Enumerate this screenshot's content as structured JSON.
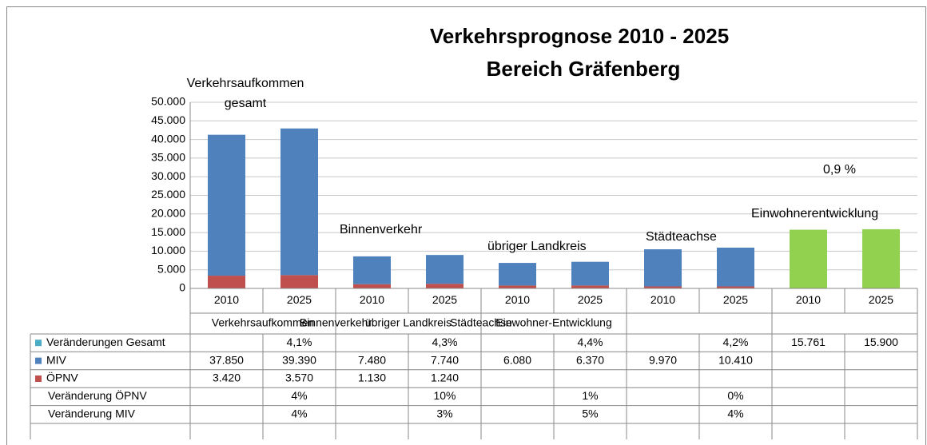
{
  "chart_data": {
    "type": "bar",
    "stacked": true,
    "title": "Verkehrsprognose 2010 - 2025",
    "subtitle": "Bereich Gräfenberg",
    "categories": [
      "2010",
      "2025",
      "2010",
      "2025",
      "2010",
      "2025",
      "2010",
      "2025",
      "2010",
      "2025"
    ],
    "category_groups": [
      "Verkehrsaufkommen",
      "Binnenverkehr",
      "übriger Landkreis",
      "Städteachse",
      "Einwohner-Entwicklung"
    ],
    "series": [
      {
        "name": "ÖPNV",
        "color": "#c0504d",
        "values": [
          3420,
          3570,
          1130,
          1240,
          770,
          780,
          540,
          540,
          null,
          null
        ],
        "value_labels": [
          "3.420",
          "3.570",
          "1.130",
          "1.240",
          null,
          null,
          null,
          null,
          null,
          null
        ]
      },
      {
        "name": "MIV",
        "color": "#4f81bd",
        "values": [
          37850,
          39390,
          7480,
          7740,
          6080,
          6370,
          9970,
          10410,
          null,
          null
        ],
        "value_labels": [
          "37.850",
          "39.390",
          "7.480",
          "7.740",
          "6.080",
          "6.370",
          "9.970",
          "10.410",
          null,
          null
        ]
      },
      {
        "name": "Veränderungen Gesamt",
        "color": "#4bacc6",
        "point_colors": [
          null,
          null,
          null,
          null,
          null,
          null,
          null,
          null,
          "#92d050",
          "#92d050"
        ],
        "values": [
          null,
          4.1,
          null,
          4.3,
          null,
          4.4,
          null,
          4.2,
          15761,
          15900
        ],
        "value_labels": [
          null,
          "4,1%",
          null,
          "4,3%",
          null,
          "4,4%",
          null,
          "4,2%",
          "15.761",
          "15.900"
        ]
      }
    ],
    "table_rows": [
      {
        "name": "Veränderung ÖPNV",
        "values": [
          null,
          4,
          null,
          10,
          null,
          1,
          null,
          0,
          null,
          null
        ],
        "value_labels": [
          null,
          "4%",
          null,
          "10%",
          null,
          "1%",
          null,
          "0%",
          null,
          null
        ]
      },
      {
        "name": "Veränderung MIV",
        "values": [
          null,
          4,
          null,
          3,
          null,
          5,
          null,
          4,
          null,
          null
        ],
        "value_labels": [
          null,
          "4%",
          null,
          "3%",
          null,
          "5%",
          null,
          "4%",
          null,
          null
        ]
      }
    ],
    "annotations": [
      "Verkehrsaufkommen gesamt",
      "Binnenverkehr",
      "übriger Landkreis",
      "Städteachse",
      "Einwohnerentwicklung",
      "0,9 %"
    ],
    "ylim": [
      0,
      50000
    ],
    "yticks": [
      0,
      {
        "value": 5000,
        "label": "5.000"
      },
      {
        "value": 10000,
        "label": "10.000"
      },
      {
        "value": 15000,
        "label": "15.000"
      },
      {
        "value": 20000,
        "label": "20.000"
      },
      {
        "value": 25000,
        "label": "25.000"
      },
      {
        "value": 30000,
        "label": "30.000"
      },
      {
        "value": 35000,
        "label": "35.000"
      },
      {
        "value": 40000,
        "label": "40.000"
      },
      {
        "value": 45000,
        "label": "45.000"
      },
      {
        "value": 50000,
        "label": "50.000"
      }
    ],
    "grid": true
  }
}
